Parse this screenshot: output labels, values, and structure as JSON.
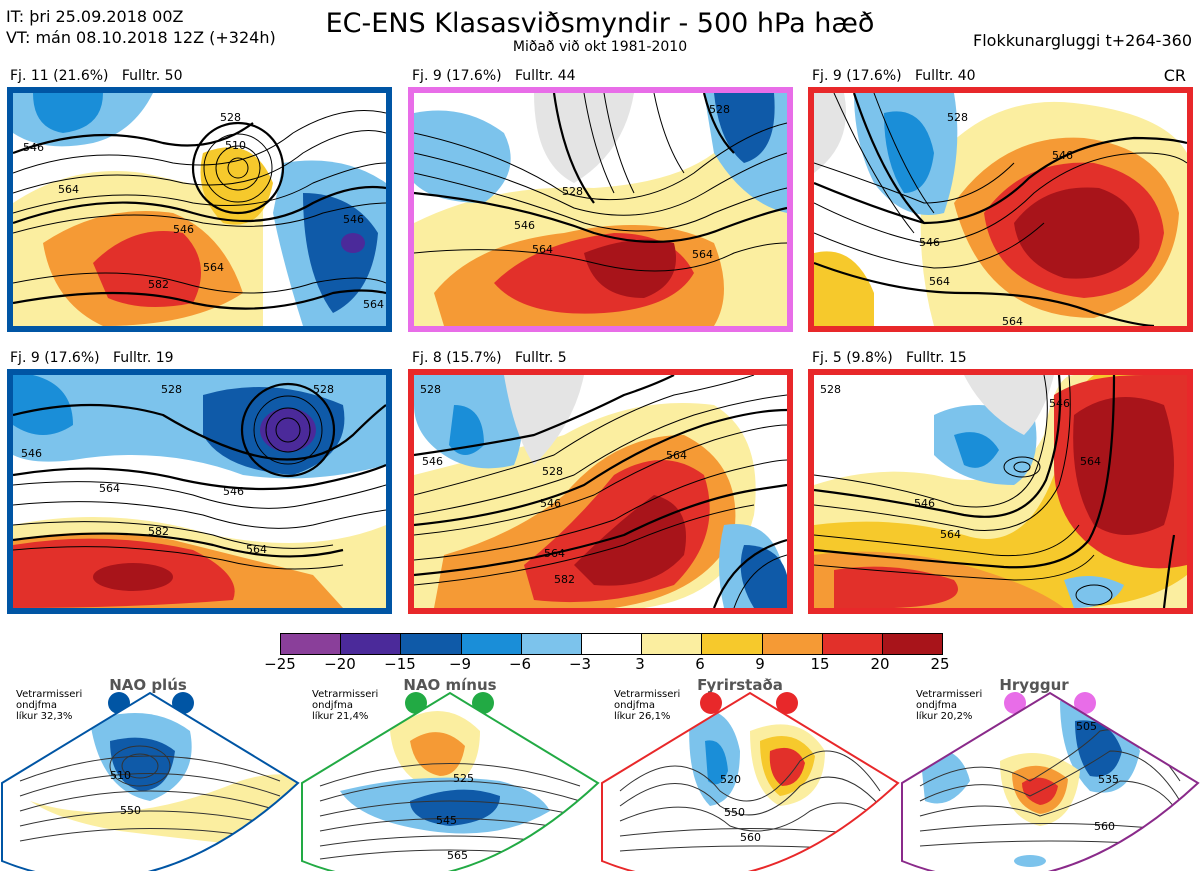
{
  "header": {
    "it": "IT: þri 25.09.2018 00Z",
    "vt": "VT: mán 08.10.2018 12Z  (+324h)",
    "title": "EC-ENS Klasasviðsmyndir - 500 hPa hæð",
    "subtitle": "Miðað við okt 1981-2010",
    "window": "Flokkunargluggi t+264-360",
    "regime_code": "CR"
  },
  "panels": [
    {
      "label": "Fj. 11 (21.6%)   Fulltr. 50",
      "border": "#0055a4",
      "contours": [
        "546",
        "564",
        "528",
        "510",
        "546",
        "546",
        "564",
        "582",
        "564"
      ]
    },
    {
      "label": "Fj. 9 (17.6%)   Fulltr. 44",
      "border": "#e86de8",
      "contours": [
        "528",
        "528",
        "546",
        "564",
        "564"
      ]
    },
    {
      "label": "Fj. 9 (17.6%)   Fulltr. 40",
      "border": "#e8282a",
      "contours": [
        "528",
        "546",
        "546",
        "564",
        "564"
      ]
    },
    {
      "label": "Fj. 9 (17.6%)   Fulltr. 19",
      "border": "#0055a4",
      "contours": [
        "528",
        "528",
        "546",
        "564",
        "546",
        "582",
        "564"
      ]
    },
    {
      "label": "Fj. 8 (15.7%)   Fulltr. 5",
      "border": "#e8282a",
      "contours": [
        "528",
        "546",
        "528",
        "564",
        "546",
        "564",
        "582"
      ]
    },
    {
      "label": "Fj. 5 (9.8%)   Fulltr. 15",
      "border": "#e8282a",
      "contours": [
        "528",
        "546",
        "564",
        "546",
        "564"
      ]
    }
  ],
  "colorbar": {
    "ticks": [
      "−25",
      "−20",
      "−15",
      "−9",
      "−6",
      "−3",
      "3",
      "6",
      "9",
      "15",
      "20",
      "25"
    ],
    "colors": [
      "#8a3f9a",
      "#4b2a9a",
      "#0f5aa8",
      "#1a8ed8",
      "#7cc3ec",
      "#ffffff",
      "#fbeea0",
      "#f6c92c",
      "#f59a35",
      "#e2302a",
      "#a8141a"
    ]
  },
  "regimes": [
    {
      "name": "NAO plús",
      "line1": "Vetrarmisseri",
      "line2": "ondjfma",
      "line3": "líkur 32,3%",
      "dot": "#0055a4",
      "border": "#0055a4",
      "contours": [
        "510",
        "550"
      ]
    },
    {
      "name": "NAO mínus",
      "line1": "Vetrarmisseri",
      "line2": "ondjfma",
      "line3": "líkur 21,4%",
      "dot": "#22aa44",
      "border": "#22aa44",
      "contours": [
        "525",
        "545",
        "565"
      ]
    },
    {
      "name": "Fyrirstaða",
      "line1": "Vetrarmisseri",
      "line2": "ondjfma",
      "line3": "líkur 26,1%",
      "dot": "#e8282a",
      "border": "#e8282a",
      "contours": [
        "520",
        "550",
        "560"
      ]
    },
    {
      "name": "Hryggur",
      "line1": "Vetrarmisseri",
      "line2": "ondjfma",
      "line3": "líkur 20,2%",
      "dot": "#e86de8",
      "border": "#8a2a8a",
      "contours": [
        "505",
        "535",
        "560"
      ]
    }
  ]
}
